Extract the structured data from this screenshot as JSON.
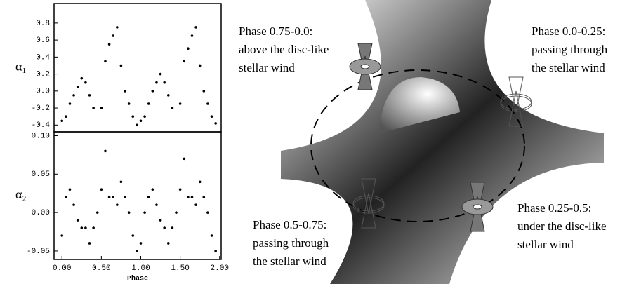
{
  "chart_data": [
    {
      "type": "scatter",
      "ylabel": "α₁",
      "color": "#000000",
      "x": [
        0.0,
        0.05,
        0.1,
        0.15,
        0.2,
        0.25,
        0.3,
        0.35,
        0.4,
        0.5,
        0.55,
        0.6,
        0.65,
        0.7,
        0.75,
        0.8,
        0.85,
        0.9,
        0.95,
        1.0,
        1.05,
        1.1,
        1.15,
        1.2,
        1.25,
        1.3,
        1.35,
        1.4,
        1.5,
        1.55,
        1.6,
        1.65,
        1.7,
        1.75,
        1.8,
        1.85,
        1.9,
        1.95
      ],
      "values": [
        -0.35,
        -0.3,
        -0.15,
        -0.05,
        0.05,
        0.15,
        0.1,
        -0.05,
        -0.2,
        -0.2,
        0.35,
        0.55,
        0.65,
        0.75,
        0.3,
        0.0,
        -0.15,
        -0.3,
        -0.4,
        -0.35,
        -0.3,
        -0.15,
        0.0,
        0.1,
        0.2,
        0.1,
        -0.05,
        -0.2,
        -0.15,
        0.35,
        0.5,
        0.65,
        0.75,
        0.3,
        0.0,
        -0.15,
        -0.3,
        -0.38
      ],
      "xlim": [
        -0.1,
        2.02
      ],
      "ylim": [
        -0.48,
        1.03
      ],
      "yticks": [
        0.8,
        0.6,
        0.4,
        0.2,
        {
          "value": 0,
          "label": "0.0"
        },
        -0.2,
        -0.4
      ]
    },
    {
      "type": "scatter",
      "ylabel": "α₂",
      "xlabel": "Phase",
      "color": "#000000",
      "x": [
        0.0,
        0.05,
        0.1,
        0.15,
        0.2,
        0.25,
        0.3,
        0.35,
        0.4,
        0.45,
        0.5,
        0.55,
        0.6,
        0.65,
        0.7,
        0.75,
        0.8,
        0.85,
        0.9,
        0.95,
        1.0,
        1.05,
        1.1,
        1.15,
        1.2,
        1.25,
        1.3,
        1.35,
        1.4,
        1.45,
        1.5,
        1.55,
        1.6,
        1.65,
        1.7,
        1.75,
        1.8,
        1.85,
        1.9,
        1.95
      ],
      "values": [
        -0.03,
        0.02,
        0.03,
        0.01,
        -0.01,
        -0.02,
        -0.02,
        -0.04,
        -0.02,
        0.0,
        0.03,
        0.08,
        0.02,
        0.02,
        0.01,
        0.04,
        0.02,
        0.0,
        -0.03,
        -0.05,
        -0.04,
        0.0,
        0.02,
        0.03,
        0.01,
        -0.01,
        -0.02,
        -0.04,
        -0.02,
        0.0,
        0.03,
        0.07,
        0.02,
        0.02,
        0.01,
        0.04,
        0.02,
        0.0,
        -0.03,
        -0.05
      ],
      "xlim": [
        -0.1,
        2.02
      ],
      "ylim": [
        -0.061,
        0.105
      ],
      "xticks": [
        {
          "value": 0,
          "label": "0.00"
        },
        {
          "value": 0.5,
          "label": "0.50"
        },
        {
          "value": 1,
          "label": "1.00"
        },
        {
          "value": 1.5,
          "label": "1.50"
        },
        {
          "value": 2,
          "label": "2.00"
        }
      ],
      "yticks": [
        {
          "value": 0.1,
          "label": "0.10"
        },
        0.05,
        {
          "value": 0,
          "label": "0.00"
        },
        -0.05
      ]
    }
  ],
  "diagram": {
    "labels": [
      {
        "lines": [
          "Phase 0.75-0.0:",
          "above the disc-like",
          "stellar wind"
        ]
      },
      {
        "lines": [
          "Phase 0.0-0.25:",
          "passing through",
          "the stellar wind"
        ]
      },
      {
        "lines": [
          "Phase 0.5-0.75:",
          "passing through",
          "the stellar wind"
        ]
      },
      {
        "lines": [
          "Phase 0.25-0.5:",
          "under the disc-like",
          "stellar wind"
        ]
      }
    ]
  }
}
